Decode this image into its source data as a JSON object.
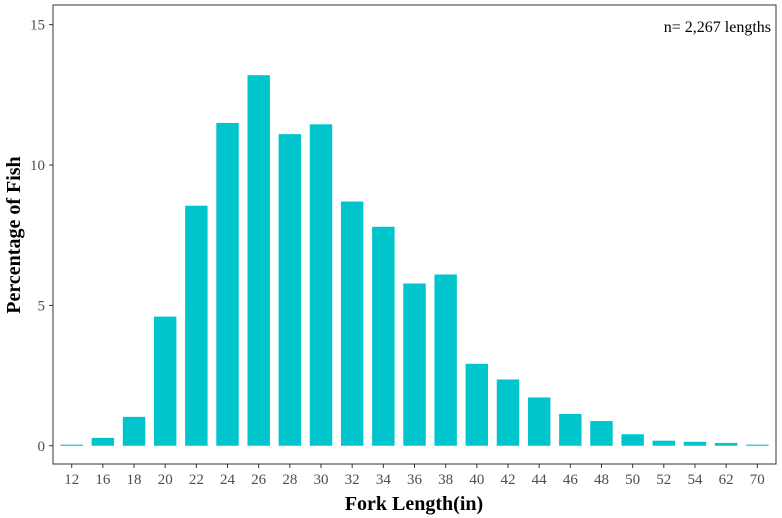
{
  "chart_data": {
    "type": "bar",
    "title": "",
    "xlabel": "Fork Length(in)",
    "ylabel": "Percentage of Fish",
    "annotation": "n= 2,267 lengths",
    "annotation_placement": "top-right",
    "categories": [
      "12",
      "16",
      "18",
      "20",
      "22",
      "24",
      "26",
      "28",
      "30",
      "32",
      "34",
      "36",
      "38",
      "40",
      "42",
      "44",
      "46",
      "48",
      "50",
      "52",
      "54",
      "62",
      "70"
    ],
    "values": [
      0.04,
      0.28,
      1.03,
      4.6,
      8.55,
      11.5,
      13.2,
      11.1,
      11.45,
      8.7,
      7.8,
      5.78,
      6.1,
      2.92,
      2.36,
      1.72,
      1.13,
      0.88,
      0.41,
      0.18,
      0.14,
      0.1,
      0.04
    ],
    "ylim": [
      -0.65,
      15.7
    ],
    "yticks": [
      0,
      5,
      10,
      15
    ],
    "grid": false,
    "legend": "none",
    "bar_color": "#00C5CD",
    "panel_border_color": "#333333",
    "tick_color": "#333333"
  }
}
